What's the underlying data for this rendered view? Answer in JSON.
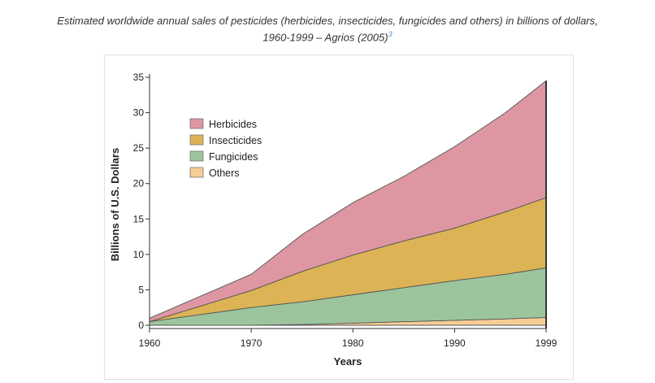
{
  "caption": {
    "line1": "Estimated worldwide annual sales of pesticides (herbicides, insecticides, fungicides and others) in billions of dollars,",
    "line2": "1960-1999 – Agrios (2005)",
    "footnote_ref": "3"
  },
  "chart_data": {
    "type": "area",
    "stacked": true,
    "title": "",
    "xlabel": "Years",
    "ylabel": "Billions of U.S. Dollars",
    "xlim": [
      1960,
      1999
    ],
    "ylim": [
      0,
      35
    ],
    "x_ticks": [
      1960,
      1970,
      1980,
      1990,
      1999
    ],
    "y_ticks": [
      0,
      5,
      10,
      15,
      20,
      25,
      30,
      35
    ],
    "legend_position": "top-left",
    "x": [
      1960,
      1970,
      1975,
      1980,
      1985,
      1990,
      1995,
      1999
    ],
    "series": [
      {
        "name": "Others",
        "color": "#f8cc95",
        "values": [
          0.0,
          0.0,
          0.1,
          0.3,
          0.5,
          0.7,
          0.9,
          1.1
        ]
      },
      {
        "name": "Fungicides",
        "color": "#9dc59d",
        "values": [
          0.5,
          2.5,
          3.2,
          4.0,
          4.8,
          5.6,
          6.3,
          7.0
        ]
      },
      {
        "name": "Insecticides",
        "color": "#dcb455",
        "values": [
          0.0,
          2.4,
          4.3,
          5.6,
          6.6,
          7.4,
          8.8,
          9.9
        ]
      },
      {
        "name": "Herbicides",
        "color": "#de97a2",
        "values": [
          0.5,
          2.3,
          5.2,
          7.4,
          9.1,
          11.5,
          14.0,
          16.5
        ]
      }
    ],
    "legend_order": [
      "Herbicides",
      "Insecticides",
      "Fungicides",
      "Others"
    ]
  }
}
